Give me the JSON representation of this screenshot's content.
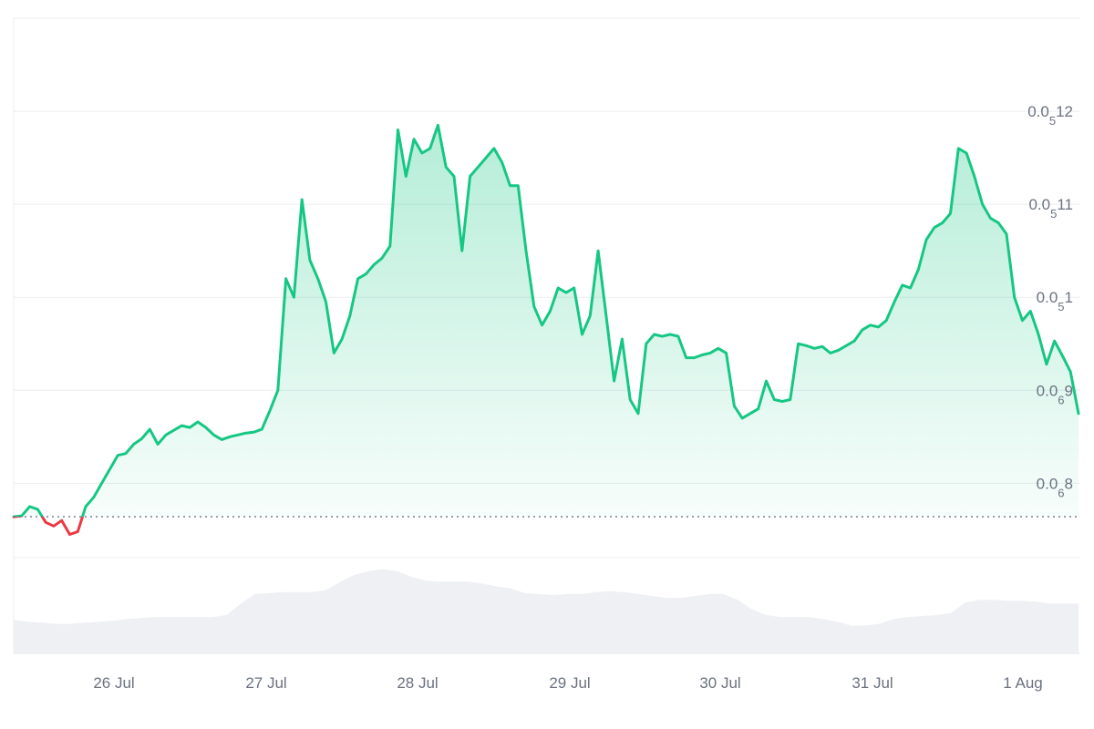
{
  "chart_data": {
    "type": "line",
    "x_labels": [
      "26 Jul",
      "27 Jul",
      "28 Jul",
      "29 Jul",
      "30 Jul",
      "31 Jul",
      "1 Aug"
    ],
    "y_ticks": [
      {
        "prefix": "0.0",
        "sub": "6",
        "suffix": "8",
        "value": 8e-07
      },
      {
        "prefix": "0.0",
        "sub": "6",
        "suffix": "9",
        "value": 9e-07
      },
      {
        "prefix": "0.0",
        "sub": "5",
        "suffix": "1",
        "value": 1e-06
      },
      {
        "prefix": "0.0",
        "sub": "5",
        "suffix": "11",
        "value": 1.1e-06
      },
      {
        "prefix": "0.0",
        "sub": "5",
        "suffix": "12",
        "value": 1.2e-06
      }
    ],
    "y_range": [
      7.2e-07,
      1.3e-06
    ],
    "baseline": 7.64e-07,
    "grid": true,
    "colors": {
      "up": "#16c784",
      "down": "#ea3943",
      "volume": "#eef0f4",
      "grid": "#eceef1",
      "axis_text": "#6b7280"
    },
    "series": [
      {
        "values": [
          7.64e-07,
          7.65e-07,
          7.75e-07,
          7.72e-07,
          7.58e-07,
          7.54e-07,
          7.6e-07,
          7.45e-07,
          7.48e-07,
          7.75e-07,
          7.85e-07,
          8e-07,
          8.15e-07,
          8.3e-07,
          8.32e-07,
          8.42e-07,
          8.48e-07,
          8.58e-07,
          8.42e-07,
          8.52e-07,
          8.57e-07,
          8.62e-07,
          8.6e-07,
          8.66e-07,
          8.6e-07,
          8.52e-07,
          8.47e-07,
          8.5e-07,
          8.52e-07,
          8.54e-07,
          8.55e-07,
          8.58e-07,
          8.78e-07,
          9e-07,
          1.02e-06,
          1e-06,
          1.105e-06,
          1.04e-06,
          1.02e-06,
          9.95e-07,
          9.4e-07,
          9.55e-07,
          9.8e-07,
          1.02e-06,
          1.025e-06,
          1.035e-06,
          1.042e-06,
          1.055e-06,
          1.18e-06,
          1.13e-06,
          1.17e-06,
          1.155e-06,
          1.16e-06,
          1.185e-06,
          1.14e-06,
          1.13e-06,
          1.05e-06,
          1.13e-06,
          1.14e-06,
          1.15e-06,
          1.16e-06,
          1.145e-06,
          1.12e-06,
          1.12e-06,
          1.05e-06,
          9.9e-07,
          9.7e-07,
          9.85e-07,
          1.01e-06,
          1.005e-06,
          1.01e-06,
          9.6e-07,
          9.8e-07,
          1.05e-06,
          9.8e-07,
          9.1e-07,
          9.55e-07,
          8.9e-07,
          8.75e-07,
          9.5e-07,
          9.6e-07,
          9.58e-07,
          9.6e-07,
          9.58e-07,
          9.35e-07,
          9.35e-07,
          9.38e-07,
          9.4e-07,
          9.45e-07,
          9.4e-07,
          8.83e-07,
          8.7e-07,
          8.75e-07,
          8.8e-07,
          9.1e-07,
          8.9e-07,
          8.88e-07,
          8.9e-07,
          9.5e-07,
          9.48e-07,
          9.45e-07,
          9.47e-07,
          9.4e-07,
          9.43e-07,
          9.48e-07,
          9.53e-07,
          9.65e-07,
          9.7e-07,
          9.68e-07,
          9.75e-07,
          9.95e-07,
          1.013e-06,
          1.01e-06,
          1.03e-06,
          1.062e-06,
          1.075e-06,
          1.08e-06,
          1.09e-06,
          1.16e-06,
          1.155e-06,
          1.13e-06,
          1.1e-06,
          1.085e-06,
          1.08e-06,
          1.068e-06,
          1e-06,
          9.75e-07,
          9.85e-07,
          9.6e-07,
          9.28e-07,
          9.53e-07,
          9.37e-07,
          9.2e-07,
          8.75e-07
        ]
      }
    ],
    "volume": [
      0.35,
      0.33,
      0.32,
      0.31,
      0.31,
      0.32,
      0.33,
      0.34,
      0.36,
      0.37,
      0.38,
      0.38,
      0.38,
      0.38,
      0.38,
      0.4,
      0.52,
      0.62,
      0.63,
      0.64,
      0.64,
      0.64,
      0.66,
      0.75,
      0.82,
      0.86,
      0.88,
      0.86,
      0.8,
      0.76,
      0.75,
      0.75,
      0.75,
      0.73,
      0.7,
      0.68,
      0.63,
      0.62,
      0.61,
      0.62,
      0.62,
      0.64,
      0.65,
      0.64,
      0.62,
      0.6,
      0.58,
      0.58,
      0.6,
      0.62,
      0.62,
      0.56,
      0.46,
      0.4,
      0.38,
      0.38,
      0.38,
      0.36,
      0.33,
      0.29,
      0.29,
      0.31,
      0.36,
      0.38,
      0.39,
      0.4,
      0.42,
      0.53,
      0.56,
      0.56,
      0.55,
      0.55,
      0.54,
      0.52,
      0.52,
      0.52
    ]
  }
}
